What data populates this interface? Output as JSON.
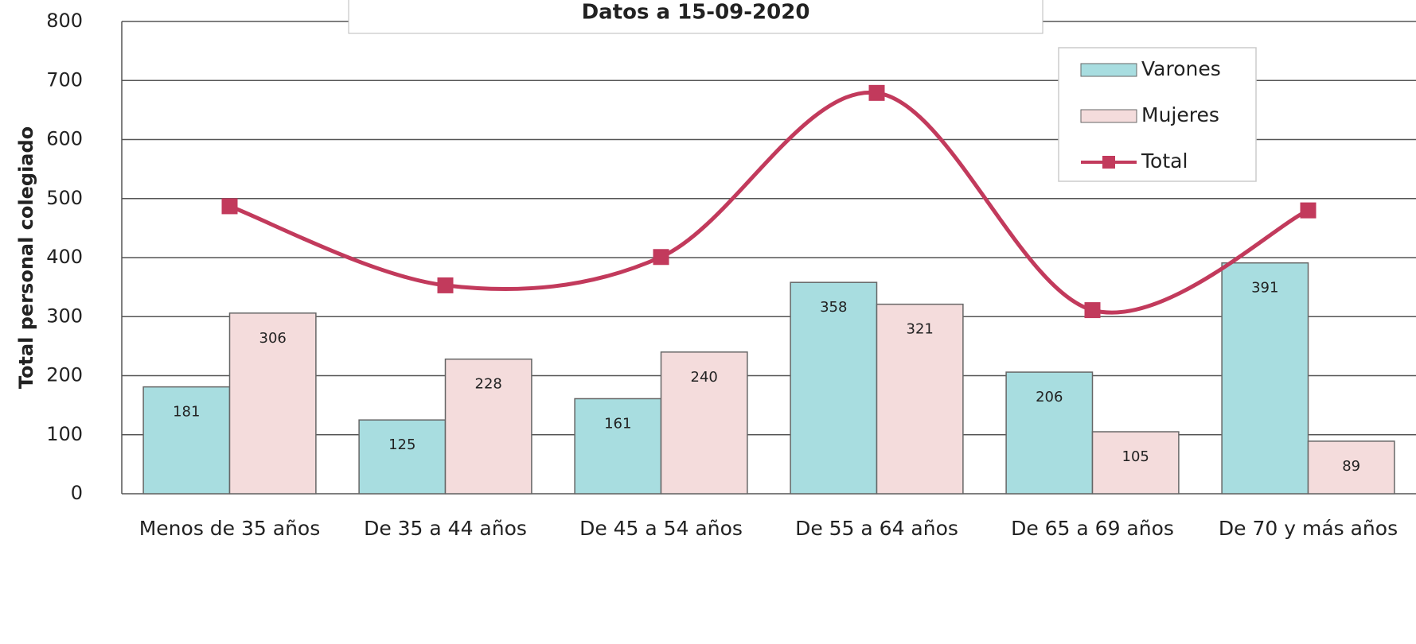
{
  "chart_data": {
    "type": "bar",
    "title": "Datos a 15-09-2020",
    "y_label": "Total personal colegiado",
    "categories": [
      "Menos de 35 años",
      "De 35 a 44 años",
      "De 45 a 54 años",
      "De 55 a 64 años",
      "De 65 a 69 años",
      "De 70 y más años"
    ],
    "series": [
      {
        "name": "Varones",
        "color": "#a8dde0",
        "type": "bar",
        "values": [
          181,
          125,
          161,
          358,
          206,
          391
        ]
      },
      {
        "name": "Mujeres",
        "color": "#f4dcdc",
        "type": "bar",
        "values": [
          306,
          228,
          240,
          321,
          105,
          89
        ]
      },
      {
        "name": "Total",
        "color": "#c23a5c",
        "type": "line",
        "values": [
          487,
          353,
          401,
          679,
          311,
          480
        ]
      }
    ],
    "ylim": [
      0,
      800
    ],
    "yticks": [
      0,
      100,
      200,
      300,
      400,
      500,
      600,
      700,
      800
    ],
    "grid": true,
    "legend": "upper right"
  }
}
